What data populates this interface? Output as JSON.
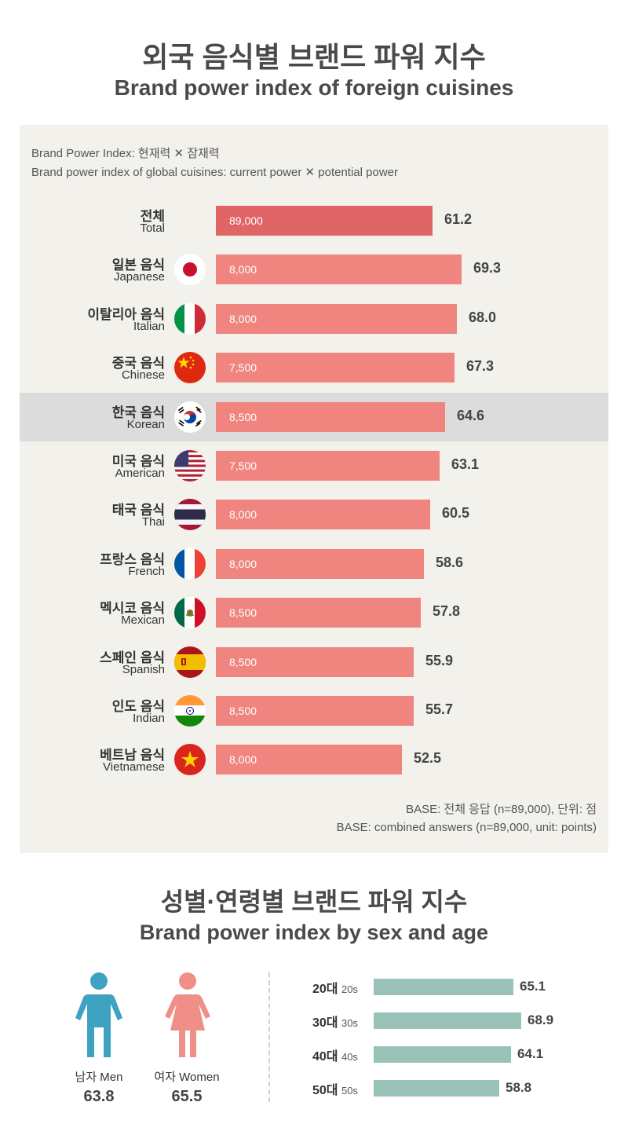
{
  "header": {
    "title_ko": "외국 음식별 브랜드 파워 지수",
    "title_en": "Brand power index of foreign cuisines"
  },
  "notes": {
    "line1": "Brand Power Index: 현재력 ✕ 잠재력",
    "line2": "Brand power index of global cuisines: current power ✕ potential power"
  },
  "chart_data": [
    {
      "type": "bar",
      "orientation": "horizontal",
      "title": "외국 음식별 브랜드 파워 지수 / Brand power index of foreign cuisines",
      "categories": [
        "전체 Total",
        "일본 음식 Japanese",
        "이탈리아 음식 Italian",
        "중국 음식 Chinese",
        "한국 음식 Korean",
        "미국 음식 American",
        "태국 음식 Thai",
        "프랑스 음식 French",
        "멕시코 음식 Mexican",
        "스페인 음식 Spanish",
        "인도 음식 Indian",
        "베트남 음식 Vietnamese"
      ],
      "values": [
        61.2,
        69.3,
        68.0,
        67.3,
        64.6,
        63.1,
        60.5,
        58.6,
        57.8,
        55.9,
        55.7,
        52.5
      ],
      "xlim": [
        0,
        69.3
      ],
      "highlighted": "한국 음식 Korean",
      "rows": [
        {
          "ko": "전체",
          "en": "Total",
          "n": "89,000",
          "value": 61.2,
          "value_label": "61.2",
          "flag": "none",
          "total": true
        },
        {
          "ko": "일본 음식",
          "en": "Japanese",
          "n": "8,000",
          "value": 69.3,
          "value_label": "69.3",
          "flag": "japan-flag-icon"
        },
        {
          "ko": "이탈리아 음식",
          "en": "Italian",
          "n": "8,000",
          "value": 68.0,
          "value_label": "68.0",
          "flag": "italy-flag-icon"
        },
        {
          "ko": "중국 음식",
          "en": "Chinese",
          "n": "7,500",
          "value": 67.3,
          "value_label": "67.3",
          "flag": "china-flag-icon"
        },
        {
          "ko": "한국 음식",
          "en": "Korean",
          "n": "8,500",
          "value": 64.6,
          "value_label": "64.6",
          "flag": "korea-flag-icon",
          "highlight": true
        },
        {
          "ko": "미국 음식",
          "en": "American",
          "n": "7,500",
          "value": 63.1,
          "value_label": "63.1",
          "flag": "usa-flag-icon"
        },
        {
          "ko": "태국 음식",
          "en": "Thai",
          "n": "8,000",
          "value": 60.5,
          "value_label": "60.5",
          "flag": "thailand-flag-icon"
        },
        {
          "ko": "프랑스 음식",
          "en": "French",
          "n": "8,000",
          "value": 58.6,
          "value_label": "58.6",
          "flag": "france-flag-icon"
        },
        {
          "ko": "멕시코 음식",
          "en": "Mexican",
          "n": "8,500",
          "value": 57.8,
          "value_label": "57.8",
          "flag": "mexico-flag-icon"
        },
        {
          "ko": "스페인 음식",
          "en": "Spanish",
          "n": "8,500",
          "value": 55.9,
          "value_label": "55.9",
          "flag": "spain-flag-icon"
        },
        {
          "ko": "인도 음식",
          "en": "Indian",
          "n": "8,500",
          "value": 55.7,
          "value_label": "55.7",
          "flag": "india-flag-icon"
        },
        {
          "ko": "베트남 음식",
          "en": "Vietnamese",
          "n": "8,000",
          "value": 52.5,
          "value_label": "52.5",
          "flag": "vietnam-flag-icon"
        }
      ],
      "colors": {
        "bar": "#f0857f",
        "total_bar": "#e06566",
        "highlight_row": "#dcdcdc",
        "panel": "#f2f1ec"
      }
    },
    {
      "type": "bar",
      "orientation": "horizontal",
      "title": "성별·연령별 브랜드 파워 지수 / Brand power index by sex and age",
      "categories": [
        "20대 20s",
        "30대 30s",
        "40대 40s",
        "50대 50s"
      ],
      "values": [
        65.1,
        68.9,
        64.1,
        58.8
      ],
      "xlim": [
        0,
        68.9
      ],
      "sex": [
        {
          "ko": "남자",
          "en": "Men",
          "value": 63.8,
          "value_label": "63.8",
          "color": "#3fa2c1"
        },
        {
          "ko": "여자",
          "en": "Women",
          "value": 65.5,
          "value_label": "65.5",
          "color": "#ef8f88"
        }
      ],
      "ages": [
        {
          "ko": "20대",
          "en": "20s",
          "value": 65.1,
          "value_label": "65.1"
        },
        {
          "ko": "30대",
          "en": "30s",
          "value": 68.9,
          "value_label": "68.9"
        },
        {
          "ko": "40대",
          "en": "40s",
          "value": 64.1,
          "value_label": "64.1"
        },
        {
          "ko": "50대",
          "en": "50s",
          "value": 58.8,
          "value_label": "58.8"
        }
      ],
      "colors": {
        "bar": "#99c2b9"
      }
    }
  ],
  "base": {
    "ko": "BASE: 전체 응답 (n=89,000), 단위: 점",
    "en": "BASE: combined answers (n=89,000, unit: points)"
  },
  "section2": {
    "title_ko": "성별·연령별 브랜드 파워 지수",
    "title_en": "Brand power index by sex and age"
  }
}
